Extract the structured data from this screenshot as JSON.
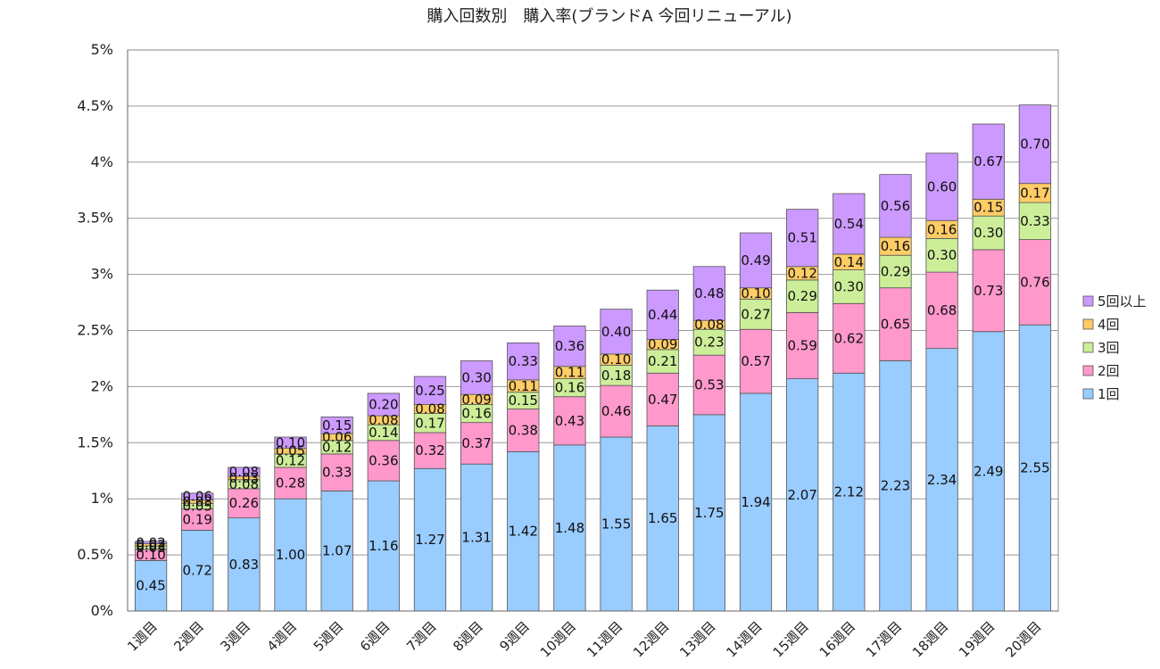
{
  "chart_data": {
    "type": "bar",
    "stacked": true,
    "title": "購入回数別　購入率(ブランドA 今回リニューアル)",
    "categories": [
      "1週目",
      "2週目",
      "3週目",
      "4週目",
      "5週目",
      "6週目",
      "7週目",
      "8週目",
      "9週目",
      "10週目",
      "11週目",
      "12週目",
      "13週目",
      "14週目",
      "15週目",
      "16週目",
      "17週目",
      "18週目",
      "19週目",
      "20週目"
    ],
    "y_ticks": [
      "0%",
      "0.5%",
      "1%",
      "1.5%",
      "2%",
      "2.5%",
      "3%",
      "3.5%",
      "4%",
      "4.5%",
      "5%"
    ],
    "ylim": [
      0,
      5
    ],
    "grid": true,
    "legend_position": "right",
    "series": [
      {
        "name": "1回",
        "color": "#99ccff",
        "values": [
          0.45,
          0.72,
          0.83,
          1.0,
          1.07,
          1.16,
          1.27,
          1.31,
          1.42,
          1.48,
          1.55,
          1.65,
          1.75,
          1.94,
          2.07,
          2.12,
          2.23,
          2.34,
          2.49,
          2.55
        ],
        "labels": [
          "0.45",
          "0.72",
          "0.83",
          "1.00",
          "1.07",
          "1.16",
          "1.27",
          "1.31",
          "1.42",
          "1.48",
          "1.55",
          "1.65",
          "1.75",
          "1.94",
          "2.07",
          "2.12",
          "2.23",
          "2.34",
          "2.49",
          "2.55"
        ]
      },
      {
        "name": "2回",
        "color": "#ff99cc",
        "values": [
          0.1,
          0.19,
          0.26,
          0.28,
          0.33,
          0.36,
          0.32,
          0.37,
          0.38,
          0.43,
          0.46,
          0.47,
          0.53,
          0.57,
          0.59,
          0.62,
          0.65,
          0.68,
          0.73,
          0.76
        ],
        "labels": [
          "0.10",
          "0.19",
          "0.26",
          "0.28",
          "0.33",
          "0.36",
          "0.32",
          "0.37",
          "0.38",
          "0.43",
          "0.46",
          "0.47",
          "0.53",
          "0.57",
          "0.59",
          "0.62",
          "0.65",
          "0.68",
          "0.73",
          "0.76"
        ]
      },
      {
        "name": "3回",
        "color": "#ccee99",
        "values": [
          0.03,
          0.05,
          0.08,
          0.12,
          0.12,
          0.14,
          0.17,
          0.16,
          0.15,
          0.16,
          0.18,
          0.21,
          0.23,
          0.27,
          0.29,
          0.3,
          0.29,
          0.3,
          0.3,
          0.33
        ],
        "labels": [
          "0.03",
          "0.05",
          "0.08",
          "0.12",
          "0.12",
          "0.14",
          "0.17",
          "0.16",
          "0.15",
          "0.16",
          "0.18",
          "0.21",
          "0.23",
          "0.27",
          "0.29",
          "0.30",
          "0.29",
          "0.30",
          "0.30",
          "0.33"
        ]
      },
      {
        "name": "4回",
        "color": "#ffcc66",
        "values": [
          0.02,
          0.03,
          0.03,
          0.05,
          0.06,
          0.08,
          0.08,
          0.09,
          0.11,
          0.11,
          0.1,
          0.09,
          0.08,
          0.1,
          0.12,
          0.14,
          0.16,
          0.16,
          0.15,
          0.17
        ],
        "labels": [
          "0.02",
          "0.03",
          "0.03",
          "0.05",
          "0.06",
          "0.08",
          "0.08",
          "0.09",
          "0.11",
          "0.11",
          "0.10",
          "0.09",
          "0.08",
          "0.10",
          "0.12",
          "0.14",
          "0.16",
          "0.16",
          "0.15",
          "0.17"
        ]
      },
      {
        "name": "5回以上",
        "color": "#cc99ff",
        "values": [
          0.02,
          0.06,
          0.08,
          0.1,
          0.15,
          0.2,
          0.25,
          0.3,
          0.33,
          0.36,
          0.4,
          0.44,
          0.48,
          0.49,
          0.51,
          0.54,
          0.56,
          0.6,
          0.67,
          0.7
        ],
        "labels": [
          "0.02",
          "0.06",
          "0.08",
          "0.10",
          "0.15",
          "0.20",
          "0.25",
          "0.30",
          "0.33",
          "0.36",
          "0.40",
          "0.44",
          "0.48",
          "0.49",
          "0.51",
          "0.54",
          "0.56",
          "0.60",
          "0.67",
          "0.70"
        ]
      }
    ]
  }
}
